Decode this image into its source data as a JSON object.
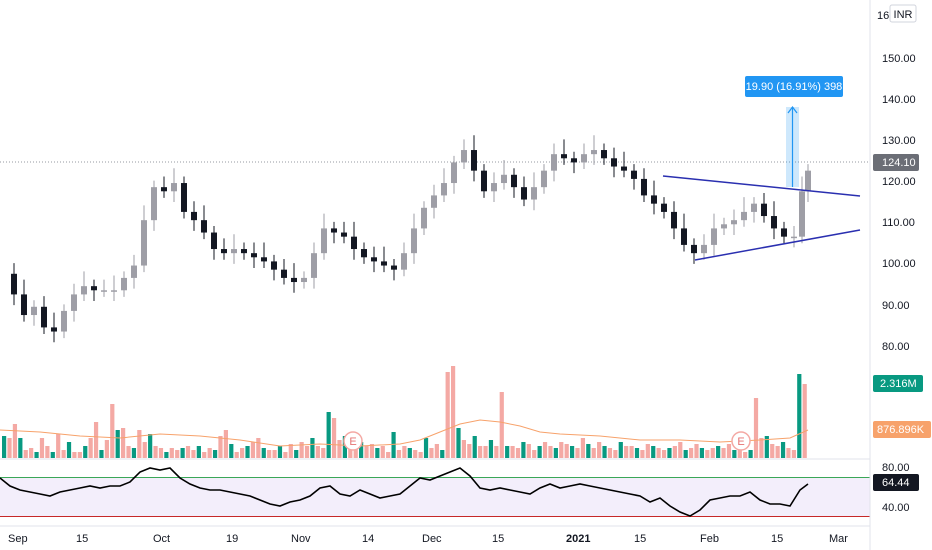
{
  "currency": "INR",
  "price_axis": {
    "ticks": [
      "150.00",
      "140.00",
      "130.00",
      "120.00",
      "110.00",
      "100.00",
      "90.00",
      "80.00"
    ],
    "top_partial": "16",
    "last_price": "124.10",
    "volume_label": "2.316M",
    "volume_ma_label": "876.896K"
  },
  "rsi_axis": {
    "ticks": [
      "80.00",
      "40.00"
    ],
    "current": "64.44"
  },
  "time_axis": {
    "labels": [
      "Sep",
      "15",
      "Oct",
      "19",
      "Nov",
      "14",
      "Dec",
      "15",
      "2021",
      "15",
      "Feb",
      "15",
      "Mar"
    ]
  },
  "measure": {
    "label": "19.90 (16.91%) 398"
  },
  "events": [
    "E",
    "E"
  ],
  "colors": {
    "up": "#26a69a",
    "down": "#131722",
    "bull_candle": "#9e9ea6",
    "vol_up": "#089981",
    "vol_down": "#f4a9a4",
    "vol_ma": "#f7a26b",
    "rsi_line": "#000000",
    "rsi_band": "#f3eefb",
    "rsi_upper": "#3aa757",
    "rsi_lower": "#c62828",
    "trendline": "#2a2fb0",
    "measure": "#2196f3",
    "last_price_tag": "#6b6e76"
  }
}
